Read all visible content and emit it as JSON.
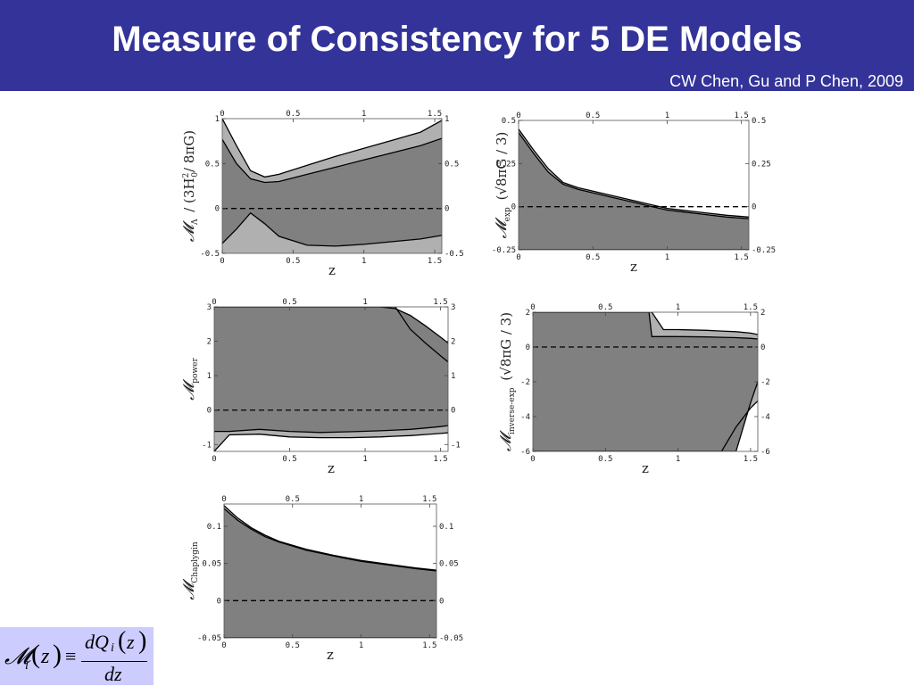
{
  "header": {
    "title": "Measure of Consistency for 5 DE Models",
    "citation": "CW Chen, Gu and P Chen, 2009",
    "background": "#333399"
  },
  "colors": {
    "outer_band": "#b0b0b0",
    "inner_band": "#808080",
    "boundary_line": "#000000",
    "zero_line": "#000000",
    "formula_background": "#ccccff"
  },
  "formula": {
    "lhs_symbol": "𝓜",
    "lhs_subscript": "i",
    "lhs_open": "(",
    "lhs_var": "z",
    "lhs_close": ")",
    "equiv": "≡",
    "numerator": "dQ",
    "numerator_subscript": "i",
    "numerator_open": "(",
    "numerator_var": "z",
    "numerator_close": ")",
    "denominator": "dz"
  },
  "chart_data": [
    {
      "type": "area",
      "model": "Lambda",
      "ylabel_parts": {
        "symbol": "𝓜",
        "subscript": "Λ",
        "text": "/ (3H",
        "sup": "2",
        "sub": "0",
        "tail": "/ 8πG)"
      },
      "xlabel": "z",
      "xlim": [
        0,
        1.55
      ],
      "ylim": [
        -0.5,
        1
      ],
      "xticks": [
        0,
        0.5,
        1,
        1.5
      ],
      "xtick_labels": [
        "0",
        "0.5",
        "1",
        "1.5"
      ],
      "yticks": [
        -0.5,
        0,
        0.5,
        1
      ],
      "ytick_labels": [
        "-0.5",
        "0",
        "0.5",
        "1"
      ],
      "zero_line": "dashed",
      "series": [
        {
          "name": "outer",
          "x": [
            0,
            0.1,
            0.2,
            0.3,
            0.4,
            0.6,
            0.8,
            1.0,
            1.2,
            1.4,
            1.55
          ],
          "upper": [
            1.0,
            0.7,
            0.42,
            0.35,
            0.38,
            0.48,
            0.58,
            0.67,
            0.76,
            0.85,
            0.98
          ],
          "lower": [
            -0.6,
            -0.6,
            -0.6,
            -0.6,
            -0.6,
            -0.6,
            -0.6,
            -0.6,
            -0.6,
            -0.6,
            -0.6
          ]
        },
        {
          "name": "inner",
          "x": [
            0,
            0.1,
            0.2,
            0.3,
            0.4,
            0.6,
            0.8,
            1.0,
            1.2,
            1.4,
            1.55
          ],
          "upper": [
            0.77,
            0.5,
            0.33,
            0.29,
            0.3,
            0.38,
            0.46,
            0.54,
            0.62,
            0.7,
            0.78
          ],
          "lower": [
            -0.39,
            -0.23,
            -0.05,
            -0.17,
            -0.31,
            -0.41,
            -0.42,
            -0.4,
            -0.37,
            -0.34,
            -0.3
          ]
        }
      ]
    },
    {
      "type": "area",
      "model": "exp",
      "ylabel_parts": {
        "symbol": "𝓜",
        "subscript": "exp",
        "text": "(√8πG / 3)"
      },
      "xlabel": "z",
      "xlim": [
        0,
        1.55
      ],
      "ylim": [
        -0.25,
        0.5
      ],
      "xticks": [
        0,
        0.5,
        1,
        1.5
      ],
      "xtick_labels": [
        "0",
        "0.5",
        "1",
        "1.5"
      ],
      "yticks": [
        -0.25,
        0,
        0.25,
        0.5
      ],
      "ytick_labels": [
        "-0.25",
        "0",
        "0.25",
        "0.5"
      ],
      "zero_line": "dashed",
      "series": [
        {
          "name": "outer",
          "x": [
            0,
            0.1,
            0.2,
            0.3,
            0.4,
            0.6,
            0.8,
            0.9,
            1.0,
            1.2,
            1.4,
            1.55
          ],
          "upper": [
            0.45,
            0.33,
            0.22,
            0.14,
            0.11,
            0.07,
            0.03,
            0.01,
            -0.01,
            -0.03,
            -0.05,
            -0.06
          ],
          "lower": [
            -0.25,
            -0.25,
            -0.25,
            -0.25,
            -0.25,
            -0.25,
            -0.25,
            -0.25,
            -0.25,
            -0.25,
            -0.25,
            -0.25
          ]
        },
        {
          "name": "inner",
          "x": [
            0,
            0.1,
            0.2,
            0.3,
            0.4,
            0.6,
            0.8,
            0.9,
            1.0,
            1.2,
            1.4,
            1.55
          ],
          "upper": [
            0.43,
            0.31,
            0.2,
            0.13,
            0.1,
            0.06,
            0.02,
            0.0,
            -0.02,
            -0.04,
            -0.06,
            -0.07
          ],
          "lower": [
            -0.25,
            -0.25,
            -0.25,
            -0.25,
            -0.25,
            -0.25,
            -0.25,
            -0.25,
            -0.25,
            -0.25,
            -0.25,
            -0.25
          ]
        }
      ]
    },
    {
      "type": "area",
      "model": "power",
      "ylabel_parts": {
        "symbol": "𝓜",
        "subscript": "power",
        "text": ""
      },
      "xlabel": "z",
      "xlim": [
        0,
        1.55
      ],
      "ylim": [
        -1.2,
        3
      ],
      "xticks": [
        0,
        0.5,
        1,
        1.5
      ],
      "xtick_labels": [
        "0",
        "0.5",
        "1",
        "1.5"
      ],
      "yticks": [
        -1,
        0,
        1,
        2,
        3
      ],
      "ytick_labels": [
        "-1",
        "0",
        "1",
        "2",
        "3"
      ],
      "zero_line": "dashed",
      "series": [
        {
          "name": "outer",
          "x": [
            0,
            0.1,
            0.3,
            0.5,
            0.7,
            0.9,
            1.1,
            1.2,
            1.3,
            1.4,
            1.5,
            1.55
          ],
          "upper": [
            3.0,
            3.0,
            3.0,
            3.0,
            3.0,
            3.0,
            3.0,
            3.0,
            2.35,
            1.95,
            1.58,
            1.4
          ],
          "lower": [
            -1.2,
            -0.72,
            -0.7,
            -0.78,
            -0.8,
            -0.8,
            -0.78,
            -0.76,
            -0.74,
            -0.71,
            -0.68,
            -0.66
          ]
        },
        {
          "name": "inner",
          "x": [
            0,
            0.1,
            0.3,
            0.5,
            0.7,
            0.9,
            1.1,
            1.2,
            1.3,
            1.4,
            1.5,
            1.55
          ],
          "upper": [
            3.0,
            3.0,
            3.0,
            3.0,
            3.0,
            3.0,
            3.0,
            2.95,
            2.75,
            2.45,
            2.12,
            1.95
          ],
          "lower": [
            -0.62,
            -0.62,
            -0.56,
            -0.62,
            -0.65,
            -0.63,
            -0.6,
            -0.58,
            -0.56,
            -0.52,
            -0.48,
            -0.45
          ]
        }
      ]
    },
    {
      "type": "area",
      "model": "inverse-exp",
      "ylabel_parts": {
        "symbol": "𝓜",
        "subscript": "inverse-exp",
        "text": "(√8πG / 3)"
      },
      "xlabel": "z",
      "xlim": [
        0,
        1.55
      ],
      "ylim": [
        -6,
        2
      ],
      "xticks": [
        0,
        0.5,
        1,
        1.5
      ],
      "xtick_labels": [
        "0",
        "0.5",
        "1",
        "1.5"
      ],
      "yticks": [
        -6,
        -4,
        -2,
        0,
        2
      ],
      "ytick_labels": [
        "-6",
        "-4",
        "-2",
        "0",
        "2"
      ],
      "zero_line": "dashed",
      "series": [
        {
          "name": "outer",
          "x": [
            0,
            0.5,
            0.8,
            0.82,
            0.9,
            1.0,
            1.2,
            1.3,
            1.4,
            1.5,
            1.55
          ],
          "upper": [
            2,
            2,
            2,
            2,
            1.0,
            1.0,
            0.96,
            0.92,
            0.88,
            0.8,
            0.72
          ],
          "lower": [
            -6,
            -6,
            -6,
            -6,
            -6,
            -6,
            -6,
            -6,
            -4.6,
            -3.5,
            -3.1
          ]
        },
        {
          "name": "inner",
          "x": [
            0,
            0.5,
            0.8,
            0.82,
            0.9,
            1.0,
            1.2,
            1.3,
            1.4,
            1.5,
            1.55
          ],
          "upper": [
            2,
            2,
            2,
            0.6,
            0.6,
            0.6,
            0.58,
            0.56,
            0.54,
            0.5,
            0.46
          ],
          "lower": [
            -6,
            -6,
            -6,
            -6,
            -6,
            -6,
            -6,
            -6,
            -6,
            -3.2,
            -2.0
          ]
        }
      ]
    },
    {
      "type": "area",
      "model": "Chaplygin",
      "ylabel_parts": {
        "symbol": "𝓜",
        "subscript": "Chaplygin",
        "text": ""
      },
      "xlabel": "z",
      "xlim": [
        0,
        1.55
      ],
      "ylim": [
        -0.05,
        0.13
      ],
      "xticks": [
        0,
        0.5,
        1,
        1.5
      ],
      "xtick_labels": [
        "0",
        "0.5",
        "1",
        "1.5"
      ],
      "yticks": [
        -0.05,
        0,
        0.05,
        0.1
      ],
      "ytick_labels": [
        "-0.05",
        "0",
        "0.05",
        "0.1"
      ],
      "zero_line": "dashed",
      "series": [
        {
          "name": "outer",
          "x": [
            0,
            0.1,
            0.2,
            0.3,
            0.4,
            0.6,
            0.8,
            1.0,
            1.2,
            1.4,
            1.55
          ],
          "upper": [
            0.128,
            0.111,
            0.098,
            0.088,
            0.08,
            0.069,
            0.061,
            0.054,
            0.049,
            0.044,
            0.041
          ],
          "lower": [
            -0.05,
            -0.05,
            -0.05,
            -0.05,
            -0.05,
            -0.05,
            -0.05,
            -0.05,
            -0.05,
            -0.05,
            -0.05
          ]
        },
        {
          "name": "inner",
          "x": [
            0,
            0.1,
            0.2,
            0.3,
            0.4,
            0.6,
            0.8,
            1.0,
            1.2,
            1.4,
            1.55
          ],
          "upper": [
            0.124,
            0.108,
            0.096,
            0.086,
            0.079,
            0.068,
            0.06,
            0.053,
            0.048,
            0.043,
            0.04
          ],
          "lower": [
            -0.05,
            -0.05,
            -0.05,
            -0.05,
            -0.05,
            -0.05,
            -0.05,
            -0.05,
            -0.05,
            -0.05,
            -0.05
          ]
        }
      ]
    }
  ]
}
